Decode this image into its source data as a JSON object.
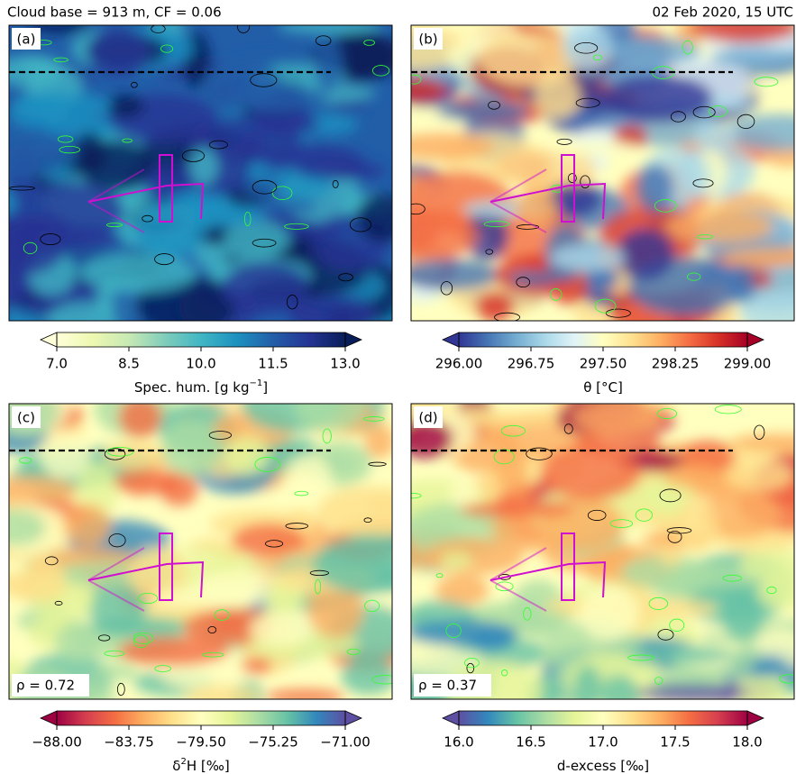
{
  "chart_data": [
    {
      "type": "map",
      "header": "Cloud base =  913 m, CF = 0.06",
      "panel_label": "(a)",
      "colorbar": {
        "label": [
          {
            "text": "Spec. hum. [g kg"
          },
          {
            "sup": "−1"
          },
          {
            "text": "]"
          }
        ],
        "xlim": [
          7,
          13
        ],
        "xticks": [
          {
            "value": 7,
            "label": "7.0"
          },
          8.5,
          {
            "value": 10,
            "label": "10.0"
          },
          11.5,
          {
            "value": 13,
            "label": "13.0"
          }
        ],
        "colors": [
          "#ffffd9",
          "#edf8b1",
          "#c7e9b4",
          "#7fcdbb",
          "#41b6c4",
          "#1d91c0",
          "#225ea8",
          "#253494",
          "#081d58"
        ]
      }
    },
    {
      "type": "map",
      "header": "02 Feb 2020, 15 UTC",
      "panel_label": "(b)",
      "colorbar": {
        "label": [
          {
            "text": "θ [°C]"
          }
        ],
        "xlim": [
          296,
          299
        ],
        "xticks": [
          {
            "value": 296,
            "label": "296.00"
          },
          296.75,
          {
            "value": 297.5,
            "label": "297.50"
          },
          298.25,
          {
            "value": 299,
            "label": "299.00"
          }
        ],
        "colors": [
          "#313695",
          "#4575b4",
          "#74add1",
          "#abd9e9",
          "#e0f3f8",
          "#ffffbf",
          "#fee090",
          "#fdae61",
          "#f46d43",
          "#d73027",
          "#a50026"
        ]
      }
    },
    {
      "type": "map",
      "panel_label": "(c)",
      "annotation": "ρ = 0.72",
      "colorbar": {
        "label": [
          {
            "text": "δ"
          },
          {
            "sup": "2"
          },
          {
            "text": "H [‰]"
          }
        ],
        "xlim": [
          -88,
          -71
        ],
        "xticks": [
          {
            "value": -88,
            "label": "−88.00"
          },
          {
            "value": -83.75,
            "label": "−83.75"
          },
          {
            "value": -79.5,
            "label": "−79.50"
          },
          {
            "value": -75.25,
            "label": "−75.25"
          },
          {
            "value": -71,
            "label": "−71.00"
          }
        ],
        "colors": [
          "#9e0142",
          "#d53e4f",
          "#f46d43",
          "#fdae61",
          "#fee08b",
          "#ffffbf",
          "#e6f598",
          "#abdda4",
          "#66c2a5",
          "#3288bd",
          "#5e4fa2"
        ]
      }
    },
    {
      "type": "map",
      "panel_label": "(d)",
      "annotation": "ρ = 0.37",
      "colorbar": {
        "label": [
          {
            "text": "d-excess [‰]"
          }
        ],
        "xlim": [
          16,
          18
        ],
        "xticks": [
          {
            "value": 16,
            "label": "16.0"
          },
          16.5,
          {
            "value": 17,
            "label": "17.0"
          },
          17.5,
          {
            "value": 18,
            "label": "18.0"
          }
        ],
        "colors": [
          "#5e4fa2",
          "#3288bd",
          "#66c2a5",
          "#abdda4",
          "#e6f598",
          "#ffffbf",
          "#fee08b",
          "#fdae61",
          "#f46d43",
          "#d53e4f",
          "#9e0142"
        ]
      }
    }
  ]
}
